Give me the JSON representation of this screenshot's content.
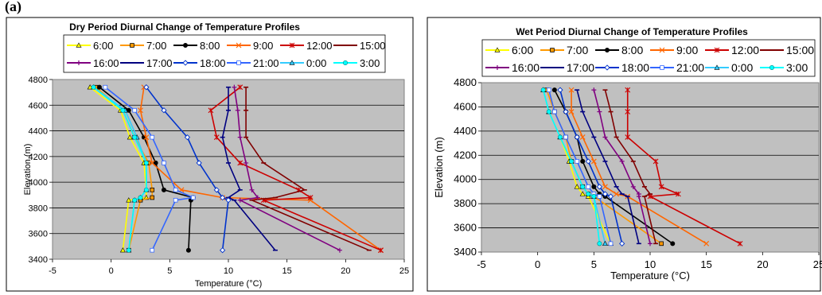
{
  "panel_label": "(a)",
  "chart_data": [
    {
      "type": "line",
      "title": "Dry Period Diurnal Change of Temperature Profiles",
      "xlabel": "Temperature (°C)",
      "ylabel": "Elevation (m)",
      "xlim": [
        -5,
        25
      ],
      "ylim": [
        3400,
        4800
      ],
      "xticks": [
        "-5",
        "0",
        "5",
        "10",
        "15",
        "20",
        "25"
      ],
      "yticks": [
        "3400",
        "3600",
        "3800",
        "4000",
        "4200",
        "4400",
        "4600",
        "4800"
      ],
      "grid": "horizontal",
      "legend_position": "top",
      "y": [
        4740,
        4560,
        4350,
        4150,
        3940,
        3880,
        3860,
        3470
      ],
      "series": [
        {
          "name": "6:00",
          "color": "#ffff00",
          "marker": "triangle",
          "values": [
            -1.8,
            0.8,
            1.6,
            2.8,
            3.0,
            3.0,
            1.5,
            1.0
          ]
        },
        {
          "name": "7:00",
          "color": "#ff9900",
          "marker": "square",
          "values": [
            -1.3,
            1.0,
            2.0,
            3.2,
            3.5,
            3.5,
            2.5,
            1.5
          ]
        },
        {
          "name": "8:00",
          "color": "#000000",
          "marker": "circle",
          "values": [
            -1.0,
            1.5,
            2.8,
            3.8,
            4.5,
            7.0,
            6.8,
            6.6
          ]
        },
        {
          "name": "9:00",
          "color": "#ff6600",
          "marker": "x",
          "values": [
            2.8,
            2.5,
            3.0,
            3.5,
            6.0,
            9.5,
            17.0,
            23.0
          ]
        },
        {
          "name": "12:00",
          "color": "#cc0000",
          "marker": "star",
          "values": [
            11.0,
            8.5,
            9.0,
            11.0,
            16.0,
            17.0,
            13.0,
            23.0
          ]
        },
        {
          "name": "15:00",
          "color": "#800000",
          "marker": "dash",
          "values": [
            11.5,
            11.5,
            11.5,
            13.0,
            16.5,
            14.0,
            12.0,
            22.0
          ]
        },
        {
          "name": "16:00",
          "color": "#800080",
          "marker": "plus",
          "values": [
            10.5,
            10.8,
            11.0,
            11.5,
            12.0,
            12.5,
            11.0,
            19.5
          ]
        },
        {
          "name": "17:00",
          "color": "#000080",
          "marker": "dash",
          "values": [
            10.0,
            10.0,
            9.5,
            10.0,
            11.0,
            10.0,
            10.5,
            14.0
          ]
        },
        {
          "name": "18:00",
          "color": "#0033cc",
          "marker": "diamond",
          "values": [
            3.0,
            4.5,
            6.5,
            7.5,
            9.0,
            9.5,
            10.0,
            9.5
          ]
        },
        {
          "name": "21:00",
          "color": "#3366ff",
          "marker": "square",
          "values": [
            -0.5,
            2.0,
            3.5,
            4.5,
            5.5,
            7.0,
            5.5,
            3.5
          ]
        },
        {
          "name": "0:00",
          "color": "#33ccff",
          "marker": "triangle",
          "values": [
            -1.5,
            1.2,
            2.2,
            3.0,
            3.0,
            2.5,
            2.0,
            1.5
          ]
        },
        {
          "name": "3:00",
          "color": "#00ffff",
          "marker": "circle",
          "values": [
            -1.5,
            1.0,
            2.0,
            3.0,
            3.0,
            2.5,
            2.0,
            1.5
          ]
        }
      ]
    },
    {
      "type": "line",
      "title": "Wet Period Diurnal Change of Temperature Profiles",
      "xlabel": "Temperature (°C)",
      "ylabel": "Elevation (m)",
      "xlim": [
        -5,
        25
      ],
      "ylim": [
        3400,
        4800
      ],
      "xticks": [
        "-5",
        "0",
        "5",
        "10",
        "15",
        "20",
        "25"
      ],
      "yticks": [
        "3400",
        "3600",
        "3800",
        "4000",
        "4200",
        "4400",
        "4600",
        "4800"
      ],
      "grid": "horizontal",
      "legend_position": "top",
      "y": [
        4740,
        4560,
        4350,
        4150,
        3940,
        3880,
        3860,
        3470
      ],
      "series": [
        {
          "name": "6:00",
          "color": "#ffff00",
          "marker": "triangle",
          "values": [
            0.5,
            1.0,
            2.0,
            2.8,
            3.5,
            4.0,
            4.5,
            6.5
          ]
        },
        {
          "name": "7:00",
          "color": "#ff9900",
          "marker": "square",
          "values": [
            0.8,
            1.5,
            2.5,
            3.0,
            4.0,
            4.5,
            5.0,
            11.0
          ]
        },
        {
          "name": "8:00",
          "color": "#000000",
          "marker": "circle",
          "values": [
            1.5,
            2.5,
            3.5,
            4.0,
            5.0,
            5.5,
            6.0,
            12.0
          ]
        },
        {
          "name": "9:00",
          "color": "#ff6600",
          "marker": "x",
          "values": [
            3.0,
            3.0,
            4.0,
            5.0,
            6.0,
            7.0,
            8.0,
            15.0
          ]
        },
        {
          "name": "12:00",
          "color": "#cc0000",
          "marker": "star",
          "values": [
            8.0,
            8.0,
            8.0,
            10.5,
            11.0,
            12.5,
            10.0,
            18.0
          ]
        },
        {
          "name": "15:00",
          "color": "#800000",
          "marker": "dash",
          "values": [
            6.0,
            6.5,
            7.0,
            8.5,
            9.5,
            10.0,
            9.5,
            10.5
          ]
        },
        {
          "name": "16:00",
          "color": "#800080",
          "marker": "plus",
          "values": [
            5.0,
            5.5,
            6.0,
            7.5,
            8.5,
            9.0,
            9.0,
            10.0
          ]
        },
        {
          "name": "17:00",
          "color": "#000080",
          "marker": "dash",
          "values": [
            3.5,
            4.0,
            5.0,
            6.0,
            7.0,
            7.5,
            8.0,
            9.0
          ]
        },
        {
          "name": "18:00",
          "color": "#0033cc",
          "marker": "diamond",
          "values": [
            2.0,
            2.5,
            3.5,
            4.5,
            5.5,
            6.0,
            6.5,
            7.5
          ]
        },
        {
          "name": "21:00",
          "color": "#3366ff",
          "marker": "square",
          "values": [
            1.0,
            1.5,
            2.5,
            3.5,
            4.5,
            5.0,
            5.5,
            6.5
          ]
        },
        {
          "name": "0:00",
          "color": "#33ccff",
          "marker": "triangle",
          "values": [
            0.5,
            1.0,
            2.0,
            3.0,
            4.0,
            4.5,
            5.0,
            6.0
          ]
        },
        {
          "name": "3:00",
          "color": "#00ffff",
          "marker": "circle",
          "values": [
            0.5,
            1.0,
            2.0,
            3.0,
            4.0,
            4.5,
            5.0,
            5.5
          ]
        }
      ]
    }
  ]
}
